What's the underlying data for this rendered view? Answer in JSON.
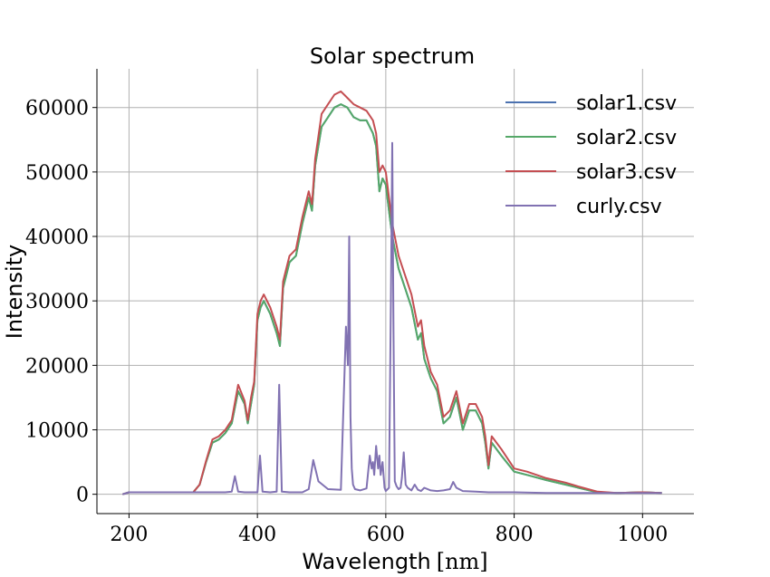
{
  "chart_data": {
    "type": "line",
    "title": "Solar spectrum",
    "xlabel": "Wavelength",
    "xlabel_unit": "[nm]",
    "ylabel": "Intensity",
    "xlim": [
      150,
      1080
    ],
    "ylim": [
      -3000,
      66000
    ],
    "xticks": [
      200,
      400,
      600,
      800,
      1000
    ],
    "yticks": [
      0,
      10000,
      20000,
      30000,
      40000,
      50000,
      60000
    ],
    "grid": true,
    "legend_position": "top-right",
    "series": [
      {
        "name": "solar1.csv",
        "color": "#4c72b0",
        "x": [
          190,
          200,
          220,
          260,
          300,
          310,
          320,
          330,
          340,
          350,
          360,
          370,
          380,
          385,
          390,
          395,
          400,
          405,
          410,
          420,
          430,
          435,
          440,
          450,
          460,
          470,
          480,
          485,
          490,
          500,
          510,
          520,
          530,
          540,
          550,
          560,
          570,
          580,
          585,
          590,
          595,
          600,
          605,
          610,
          620,
          630,
          640,
          650,
          655,
          660,
          670,
          680,
          690,
          700,
          710,
          720,
          730,
          740,
          750,
          755,
          760,
          765,
          780,
          800,
          820,
          850,
          880,
          900,
          930,
          960,
          1000,
          1030
        ],
        "y": [
          0,
          300,
          300,
          300,
          300,
          1500,
          5000,
          8000,
          8500,
          9500,
          11000,
          16000,
          14000,
          11000,
          14000,
          17000,
          27000,
          29000,
          30000,
          28000,
          25000,
          23000,
          32000,
          36000,
          37000,
          42000,
          46000,
          44000,
          51000,
          57000,
          58500,
          60000,
          60500,
          60000,
          58500,
          58000,
          58000,
          56000,
          54000,
          47000,
          49000,
          48000,
          44000,
          40000,
          35000,
          32000,
          29000,
          24000,
          25000,
          21000,
          18000,
          16000,
          11000,
          12000,
          15000,
          10000,
          13000,
          13000,
          11000,
          8000,
          4000,
          8000,
          6000,
          3500,
          3000,
          2200,
          1500,
          1000,
          300,
          200,
          300,
          200
        ]
      },
      {
        "name": "solar2.csv",
        "color": "#55a868",
        "x": [
          190,
          200,
          220,
          260,
          300,
          310,
          320,
          330,
          340,
          350,
          360,
          370,
          380,
          385,
          390,
          395,
          400,
          405,
          410,
          420,
          430,
          435,
          440,
          450,
          460,
          470,
          480,
          485,
          490,
          500,
          510,
          520,
          530,
          540,
          550,
          560,
          570,
          580,
          585,
          590,
          595,
          600,
          605,
          610,
          620,
          630,
          640,
          650,
          655,
          660,
          670,
          680,
          690,
          700,
          710,
          720,
          730,
          740,
          750,
          755,
          760,
          765,
          780,
          800,
          820,
          850,
          880,
          900,
          930,
          960,
          1000,
          1030
        ],
        "y": [
          0,
          300,
          300,
          300,
          300,
          1500,
          5000,
          8000,
          8500,
          9500,
          11000,
          16000,
          14000,
          11000,
          14000,
          17000,
          27000,
          29000,
          30000,
          28000,
          25000,
          23000,
          32000,
          36000,
          37000,
          42000,
          46000,
          44000,
          51000,
          57000,
          58500,
          60000,
          60500,
          60000,
          58500,
          58000,
          58000,
          56000,
          54000,
          47000,
          49000,
          48000,
          44000,
          40000,
          35000,
          32000,
          29000,
          24000,
          25000,
          21000,
          18000,
          16000,
          11000,
          12000,
          15000,
          10000,
          13000,
          13000,
          11000,
          8000,
          4000,
          8000,
          6000,
          3500,
          3000,
          2200,
          1500,
          1000,
          300,
          200,
          300,
          200
        ]
      },
      {
        "name": "solar3.csv",
        "color": "#c44e52",
        "x": [
          190,
          200,
          220,
          260,
          300,
          310,
          320,
          330,
          340,
          350,
          360,
          370,
          380,
          385,
          390,
          395,
          400,
          405,
          410,
          420,
          430,
          435,
          440,
          450,
          460,
          470,
          480,
          485,
          490,
          500,
          510,
          520,
          530,
          540,
          550,
          560,
          570,
          580,
          585,
          590,
          595,
          600,
          605,
          610,
          620,
          630,
          640,
          650,
          655,
          660,
          670,
          680,
          690,
          700,
          710,
          720,
          730,
          740,
          750,
          755,
          760,
          765,
          780,
          800,
          820,
          850,
          880,
          900,
          930,
          960,
          1000,
          1030
        ],
        "y": [
          0,
          300,
          300,
          300,
          300,
          1500,
          5200,
          8500,
          9000,
          10000,
          11500,
          17000,
          14500,
          11500,
          15000,
          17500,
          28000,
          30000,
          31000,
          29000,
          26000,
          24000,
          33000,
          37000,
          38000,
          43000,
          47000,
          45000,
          52000,
          59000,
          60500,
          62000,
          62500,
          61500,
          60500,
          60000,
          59500,
          58000,
          56000,
          50000,
          51000,
          50000,
          46000,
          42000,
          37000,
          34000,
          31000,
          26000,
          27000,
          23000,
          19000,
          17000,
          12000,
          13000,
          16000,
          11000,
          14000,
          14000,
          12000,
          9000,
          4500,
          9000,
          7000,
          4000,
          3500,
          2500,
          1800,
          1200,
          400,
          200,
          300,
          200
        ]
      },
      {
        "name": "curly.csv",
        "color": "#8172b2",
        "x": [
          190,
          200,
          250,
          300,
          350,
          360,
          365,
          370,
          380,
          400,
          404,
          408,
          420,
          430,
          434,
          438,
          450,
          470,
          480,
          487,
          495,
          510,
          530,
          538,
          541,
          543,
          545,
          547,
          549,
          552,
          560,
          570,
          575,
          578,
          580,
          582,
          585,
          588,
          590,
          592,
          595,
          598,
          600,
          605,
          608,
          610,
          612,
          614,
          617,
          620,
          623,
          625,
          628,
          631,
          634,
          640,
          645,
          650,
          655,
          660,
          670,
          680,
          690,
          700,
          705,
          710,
          720,
          740,
          760,
          800,
          850,
          900,
          950,
          1000,
          1030
        ],
        "y": [
          0,
          300,
          300,
          300,
          300,
          400,
          2800,
          400,
          300,
          300,
          6000,
          400,
          300,
          400,
          17000,
          400,
          300,
          300,
          800,
          5300,
          2000,
          800,
          700,
          26000,
          20000,
          40000,
          12000,
          4000,
          1500,
          800,
          600,
          900,
          6000,
          4000,
          5000,
          3000,
          7500,
          4000,
          6000,
          3000,
          5000,
          1000,
          500,
          1000,
          30000,
          54500,
          25000,
          2000,
          1200,
          800,
          1000,
          2500,
          6500,
          1500,
          1000,
          600,
          1500,
          700,
          500,
          1000,
          600,
          500,
          600,
          800,
          1900,
          1000,
          500,
          400,
          300,
          300,
          200,
          200,
          200,
          200,
          200
        ]
      }
    ]
  }
}
